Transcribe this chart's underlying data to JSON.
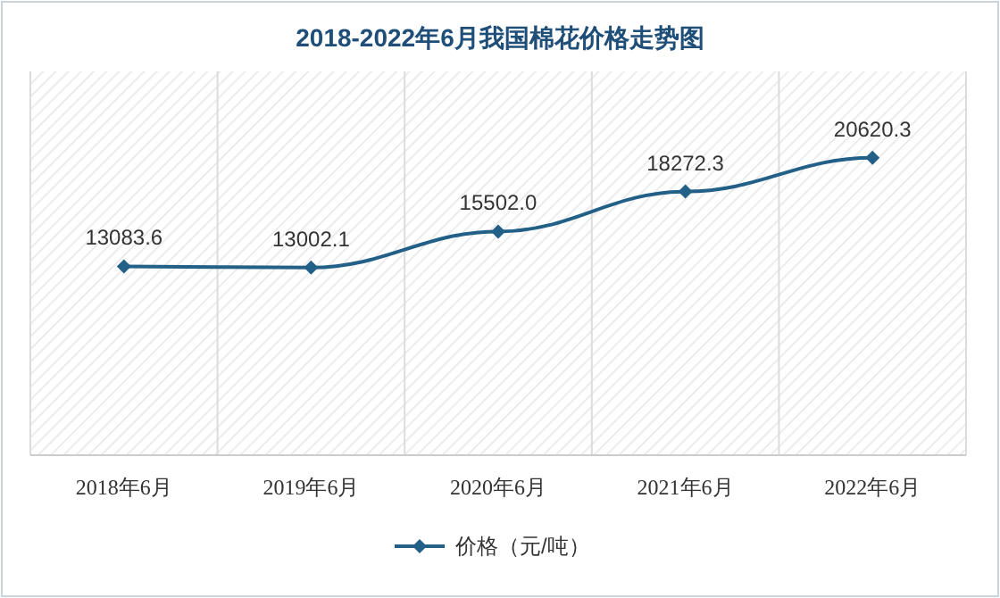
{
  "chart_data": {
    "type": "line",
    "title": "2018-2022年6月我国棉花价格走势图",
    "categories": [
      "2018年6月",
      "2019年6月",
      "2020年6月",
      "2021年6月",
      "2022年6月"
    ],
    "series": [
      {
        "name": "价格（元/吨）",
        "color": "#236088",
        "values": [
          13083.6,
          13002.1,
          15502.0,
          18272.3,
          20620.3
        ],
        "value_labels": [
          "13083.6",
          "13002.1",
          "15502.0",
          "18272.3",
          "20620.3"
        ]
      }
    ],
    "marker": "diamond",
    "line_style": "solid",
    "grid": "x",
    "legend": "bottom"
  }
}
